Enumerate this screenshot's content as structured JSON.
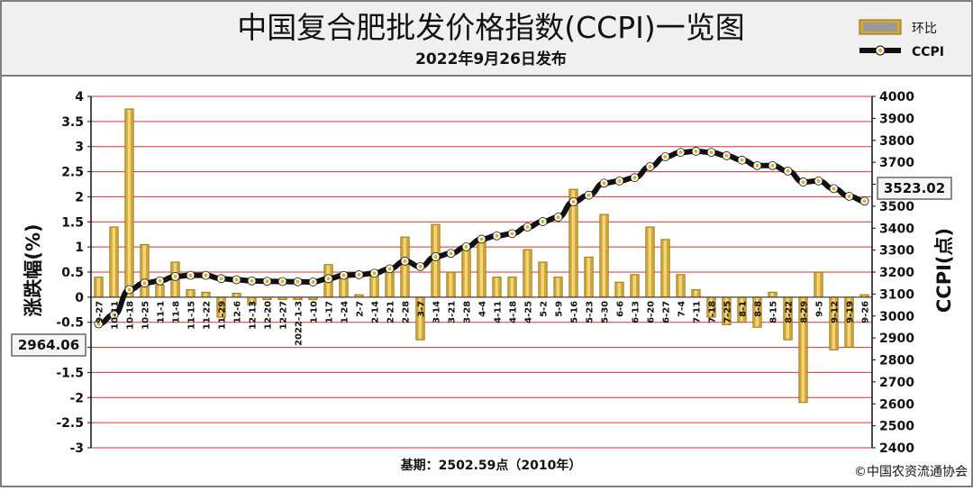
{
  "header": {
    "title": "中国复合肥批发价格指数(CCPI)一览图",
    "subtitle": "2022年9月26日发布"
  },
  "footer": {
    "base_label": "基期：2502.59点（2010年）",
    "copyright": "©中国农资流通协会"
  },
  "colors": {
    "bar": "#d4a838",
    "bar_edge": "#8a6a10",
    "line": "#111111",
    "marker_fill": "#ffffff",
    "marker_dot": "#e0b020",
    "grid": "#d93030",
    "plot_bg": "#ffffff",
    "header_bg": "#f0f0f0"
  },
  "chart_data": {
    "type": "bar+line",
    "title": "中国复合肥批发价格指数(CCPI)一览图",
    "subtitle": "2022年9月26日发布",
    "ylabel_left": "涨跌幅(%)",
    "ylabel_right": "CCPI(点)",
    "ylim_left": [
      -3,
      4
    ],
    "ylim_right": [
      2400,
      4000
    ],
    "yticks_left": [
      "4",
      "3.5",
      "3",
      "2.5",
      "2",
      "1.5",
      "1",
      "0.5",
      "0",
      "-0.5",
      "-1",
      "-1.5",
      "-2",
      "-2.5",
      "-3"
    ],
    "yticks_right": [
      "4000",
      "3900",
      "3800",
      "3700",
      "3600",
      "3500",
      "3400",
      "3300",
      "3200",
      "3100",
      "3000",
      "2900",
      "2800",
      "2700",
      "2600",
      "2500",
      "2400"
    ],
    "grid": true,
    "legend": {
      "placement": "top-right",
      "entries": [
        "环比",
        "CCPI"
      ]
    },
    "categories": [
      "9-27",
      "10-11",
      "10-18",
      "10-25",
      "11-1",
      "11-8",
      "11-15",
      "11-22",
      "11-29",
      "12-6",
      "12-13",
      "12-20",
      "12-27",
      "2022-1-3",
      "1-10",
      "1-17",
      "1-24",
      "2-7",
      "2-14",
      "2-21",
      "2-28",
      "3-7",
      "3-14",
      "3-21",
      "3-28",
      "4-4",
      "4-11",
      "4-18",
      "4-25",
      "5-2",
      "5-9",
      "5-16",
      "5-23",
      "5-30",
      "6-6",
      "6-13",
      "6-20",
      "6-27",
      "7-4",
      "7-11",
      "7-18",
      "7-25",
      "8-1",
      "8-8",
      "8-15",
      "8-22",
      "8-29",
      "9-5",
      "9-12",
      "9-19",
      "9-26"
    ],
    "series": [
      {
        "name": "环比",
        "type": "bar",
        "axis": "left",
        "values": [
          0.4,
          1.4,
          3.75,
          1.05,
          0.25,
          0.7,
          0.15,
          0.1,
          -0.4,
          0.08,
          -0.15,
          -0.05,
          -0.05,
          -0.05,
          -0.05,
          0.65,
          0.45,
          0.05,
          0.45,
          0.5,
          1.2,
          -0.85,
          1.45,
          0.5,
          0.95,
          1.1,
          0.4,
          0.4,
          0.95,
          0.7,
          0.4,
          2.15,
          0.8,
          1.65,
          0.3,
          0.45,
          1.4,
          1.15,
          0.45,
          0.15,
          -0.4,
          -0.55,
          -0.5,
          -0.6,
          0.1,
          -0.85,
          -2.1,
          0.5,
          -1.05,
          -1.0,
          0.05
        ]
      },
      {
        "name": "CCPI",
        "type": "line",
        "axis": "right",
        "values": [
          2964.06,
          3005,
          3120,
          3150,
          3160,
          3180,
          3185,
          3185,
          3170,
          3165,
          3160,
          3158,
          3157,
          3156,
          3155,
          3170,
          3185,
          3188,
          3195,
          3215,
          3250,
          3225,
          3270,
          3285,
          3315,
          3350,
          3365,
          3375,
          3405,
          3430,
          3450,
          3520,
          3550,
          3605,
          3615,
          3630,
          3680,
          3725,
          3745,
          3750,
          3745,
          3730,
          3710,
          3685,
          3685,
          3660,
          3610,
          3615,
          3580,
          3545,
          3523.02
        ]
      }
    ],
    "annotations": [
      {
        "label": "2964.06",
        "at": "9-27"
      },
      {
        "label": "3523.02",
        "at": "9-26"
      }
    ]
  }
}
